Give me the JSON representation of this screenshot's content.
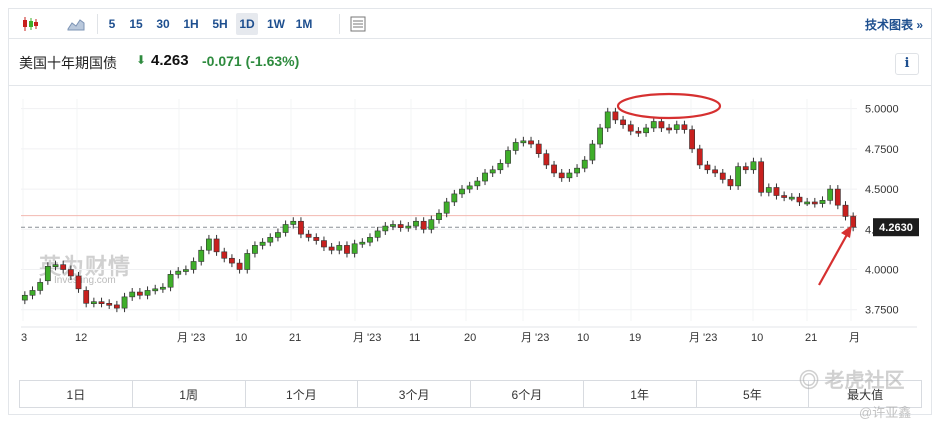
{
  "toolbar": {
    "intervals": [
      "5",
      "15",
      "30",
      "1H",
      "5H",
      "1D",
      "1W",
      "1M"
    ],
    "active_interval": "1D",
    "icons": [
      "candlestick-icon",
      "area-chart-icon",
      "chart-settings-icon"
    ],
    "right_link": "技术图表 »"
  },
  "header": {
    "name": "美国十年期国债",
    "arrow": "⬇",
    "price": "4.263",
    "change": "-0.071 (-1.63%)",
    "info": "i"
  },
  "chart_data": {
    "type": "candlestick",
    "y_ticks": [
      "5.0000",
      "4.7500",
      "4.5000",
      "4.2500",
      "4.0000",
      "3.7500"
    ],
    "ylim": [
      3.68,
      5.06
    ],
    "x_ticks": [
      "3",
      "12",
      "月 '23",
      "10",
      "21",
      "月 '23",
      "11",
      "20",
      "月 '23",
      "10",
      "19",
      "月 '23",
      "10",
      "21",
      "月"
    ],
    "last_price_label": "4.2630",
    "colors": {
      "up": "#3fae2a",
      "down": "#c8201e",
      "highlight": "#d63030"
    },
    "closes": [
      3.84,
      3.87,
      3.92,
      4.02,
      4.03,
      4.0,
      3.96,
      3.88,
      3.79,
      3.8,
      3.79,
      3.78,
      3.76,
      3.83,
      3.86,
      3.84,
      3.87,
      3.88,
      3.89,
      3.97,
      3.99,
      4.0,
      4.05,
      4.12,
      4.19,
      4.11,
      4.07,
      4.04,
      4.0,
      4.1,
      4.15,
      4.17,
      4.2,
      4.23,
      4.28,
      4.3,
      4.22,
      4.2,
      4.18,
      4.14,
      4.12,
      4.15,
      4.1,
      4.16,
      4.17,
      4.2,
      4.24,
      4.27,
      4.28,
      4.26,
      4.27,
      4.3,
      4.25,
      4.31,
      4.35,
      4.42,
      4.47,
      4.5,
      4.52,
      4.55,
      4.6,
      4.62,
      4.66,
      4.74,
      4.79,
      4.8,
      4.78,
      4.72,
      4.65,
      4.6,
      4.57,
      4.6,
      4.63,
      4.68,
      4.78,
      4.88,
      4.98,
      4.93,
      4.9,
      4.86,
      4.85,
      4.88,
      4.92,
      4.88,
      4.87,
      4.9,
      4.87,
      4.75,
      4.65,
      4.62,
      4.6,
      4.56,
      4.52,
      4.64,
      4.62,
      4.67,
      4.48,
      4.51,
      4.46,
      4.45,
      4.45,
      4.42,
      4.42,
      4.41,
      4.43,
      4.5,
      4.4,
      4.33,
      4.263
    ],
    "opens": [
      3.81,
      3.84,
      3.87,
      3.93,
      4.02,
      4.03,
      4.0,
      3.96,
      3.87,
      3.79,
      3.8,
      3.79,
      3.78,
      3.76,
      3.83,
      3.86,
      3.84,
      3.87,
      3.88,
      3.89,
      3.97,
      3.99,
      4.0,
      4.05,
      4.12,
      4.19,
      4.11,
      4.07,
      4.04,
      4.0,
      4.1,
      4.15,
      4.17,
      4.2,
      4.23,
      4.28,
      4.3,
      4.22,
      4.2,
      4.18,
      4.14,
      4.12,
      4.15,
      4.1,
      4.16,
      4.17,
      4.2,
      4.24,
      4.27,
      4.28,
      4.26,
      4.27,
      4.3,
      4.25,
      4.31,
      4.35,
      4.42,
      4.47,
      4.5,
      4.52,
      4.55,
      4.6,
      4.62,
      4.66,
      4.74,
      4.79,
      4.8,
      4.78,
      4.72,
      4.65,
      4.6,
      4.57,
      4.6,
      4.63,
      4.68,
      4.78,
      4.88,
      4.98,
      4.93,
      4.9,
      4.86,
      4.85,
      4.88,
      4.92,
      4.88,
      4.87,
      4.9,
      4.87,
      4.75,
      4.65,
      4.62,
      4.6,
      4.56,
      4.52,
      4.64,
      4.62,
      4.67,
      4.48,
      4.51,
      4.46,
      4.45,
      4.45,
      4.42,
      4.42,
      4.41,
      4.43,
      4.5,
      4.4,
      4.33
    ]
  },
  "ranges": [
    "1日",
    "1周",
    "1个月",
    "3个月",
    "6个月",
    "1年",
    "5年",
    "最大值"
  ],
  "watermarks": {
    "investing": "英为财情",
    "investing_sub": "Investing.com",
    "tiger": "◎ 老虎社区",
    "user": "@许亚鑫"
  }
}
